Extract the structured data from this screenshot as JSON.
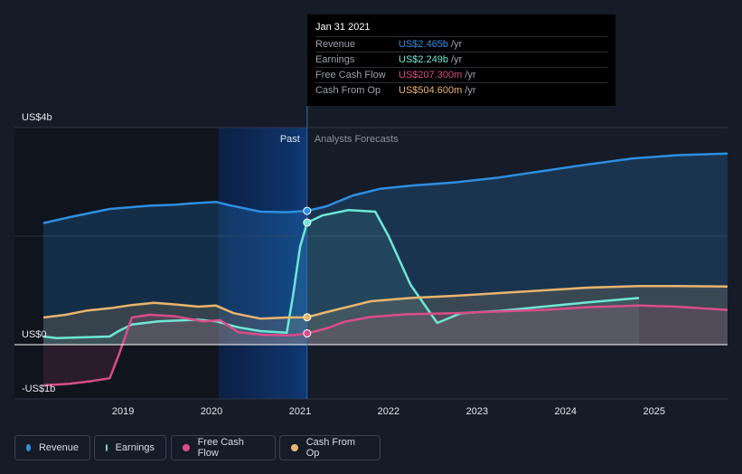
{
  "chart_data": {
    "type": "area",
    "y_axis": {
      "ylim": [
        -1,
        4
      ],
      "tick_labels": [
        "US$4b",
        "US$0",
        "-US$1b"
      ],
      "tick_values": [
        4,
        0,
        -1
      ]
    },
    "x_axis": {
      "xlim": [
        2018.1,
        2025.83
      ],
      "tick_labels": [
        "2019",
        "2020",
        "2021",
        "2022",
        "2023",
        "2024",
        "2025"
      ],
      "tick_values": [
        2019,
        2020,
        2021,
        2022,
        2023,
        2024,
        2025
      ]
    },
    "past_label": "Past",
    "forecast_label": "Analysts Forecasts",
    "divider_x": 2021.08,
    "highlight_start_x": 2020.08,
    "series": [
      {
        "name": "Revenue",
        "color": "#2e8ee0",
        "x": [
          2018.1,
          2018.4,
          2018.85,
          2019.3,
          2019.6,
          2019.75,
          2020.05,
          2020.2,
          2020.55,
          2020.85,
          2021.08,
          2021.3,
          2021.6,
          2021.9,
          2022.25,
          2022.75,
          2023.25,
          2023.75,
          2024.25,
          2024.75,
          2025.25,
          2025.83
        ],
        "values": [
          2.24,
          2.35,
          2.5,
          2.56,
          2.58,
          2.6,
          2.63,
          2.57,
          2.45,
          2.44,
          2.465,
          2.55,
          2.75,
          2.87,
          2.93,
          2.99,
          3.08,
          3.2,
          3.32,
          3.43,
          3.49,
          3.52
        ]
      },
      {
        "name": "Earnings",
        "color": "#6ee7d6",
        "x": [
          2018.1,
          2018.25,
          2018.85,
          2018.95,
          2019.1,
          2019.4,
          2019.85,
          2020.05,
          2020.3,
          2020.55,
          2020.85,
          2020.92,
          2021.0,
          2021.08,
          2021.25,
          2021.55,
          2021.85,
          2022.0,
          2022.25,
          2022.55,
          2022.82,
          2023.25,
          2023.75,
          2024.25,
          2024.83
        ],
        "values": [
          0.15,
          0.12,
          0.15,
          0.25,
          0.37,
          0.43,
          0.46,
          0.43,
          0.32,
          0.25,
          0.22,
          0.9,
          1.8,
          2.249,
          2.38,
          2.48,
          2.45,
          2.0,
          1.1,
          0.4,
          0.58,
          0.62,
          0.7,
          0.78,
          0.86
        ]
      },
      {
        "name": "Free Cash Flow",
        "color": "#d94d88",
        "x": [
          2018.1,
          2018.4,
          2018.65,
          2018.85,
          2018.95,
          2019.1,
          2019.3,
          2019.6,
          2019.9,
          2020.1,
          2020.3,
          2020.6,
          2020.9,
          2021.08,
          2021.3,
          2021.5,
          2021.8,
          2022.2,
          2022.75,
          2023.25,
          2023.75,
          2024.25,
          2024.83,
          2025.25,
          2025.83
        ],
        "values": [
          -0.75,
          -0.72,
          -0.67,
          -0.62,
          -0.2,
          0.5,
          0.55,
          0.52,
          0.43,
          0.45,
          0.23,
          0.18,
          0.17,
          0.2073,
          0.3,
          0.42,
          0.51,
          0.56,
          0.58,
          0.61,
          0.64,
          0.69,
          0.72,
          0.7,
          0.64
        ]
      },
      {
        "name": "Cash From Op",
        "color": "#e8b56d",
        "x": [
          2018.1,
          2018.35,
          2018.6,
          2018.85,
          2019.1,
          2019.35,
          2019.6,
          2019.85,
          2020.05,
          2020.25,
          2020.55,
          2020.85,
          2021.08,
          2021.3,
          2021.6,
          2021.8,
          2022.25,
          2022.75,
          2023.25,
          2023.75,
          2024.25,
          2024.83,
          2025.25,
          2025.83
        ],
        "values": [
          0.5,
          0.55,
          0.63,
          0.67,
          0.73,
          0.77,
          0.74,
          0.7,
          0.72,
          0.58,
          0.48,
          0.5,
          0.5046,
          0.6,
          0.72,
          0.8,
          0.86,
          0.9,
          0.95,
          1.0,
          1.05,
          1.08,
          1.08,
          1.07
        ]
      }
    ]
  },
  "tooltip": {
    "date": "Jan 31 2021",
    "rows": [
      {
        "label": "Revenue",
        "value": "US$2.465b",
        "unit": "/yr",
        "color": "#2e8ee0"
      },
      {
        "label": "Earnings",
        "value": "US$2.249b",
        "unit": "/yr",
        "color": "#6ee7d6"
      },
      {
        "label": "Free Cash Flow",
        "value": "US$207.300m",
        "unit": "/yr",
        "color": "#d94d88"
      },
      {
        "label": "Cash From Op",
        "value": "US$504.600m",
        "unit": "/yr",
        "color": "#e8b56d"
      }
    ]
  },
  "legend": [
    {
      "label": "Revenue",
      "color": "#2e8ee0"
    },
    {
      "label": "Earnings",
      "color": "#6ee7d6"
    },
    {
      "label": "Free Cash Flow",
      "color": "#d94d88"
    },
    {
      "label": "Cash From Op",
      "color": "#e8b56d"
    }
  ]
}
